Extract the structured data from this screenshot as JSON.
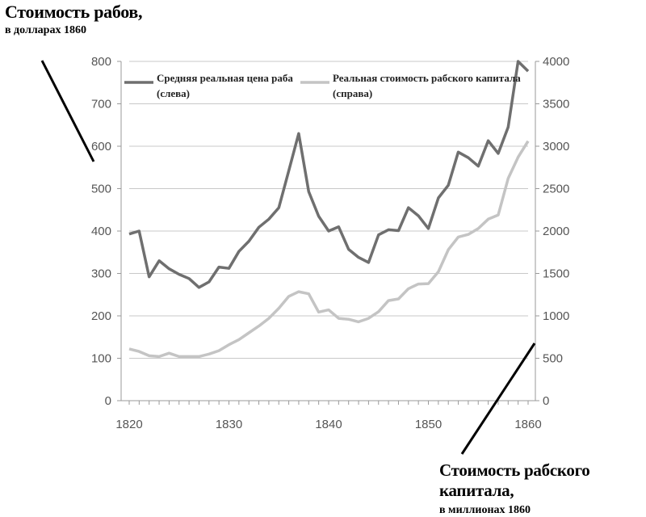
{
  "header": {
    "title": "Стоимость рабов,",
    "subtitle": "в долларах 1860"
  },
  "footer": {
    "title": "Стоимость рабского капитала,",
    "subtitle": "в миллионах 1860"
  },
  "legend": {
    "series1_line1": "Средняя реальная цена раба",
    "series1_line2": "(слева)",
    "series2_line1": "Реальная стоимость рабского капитала",
    "series2_line2": "(справа)"
  },
  "chart_data": {
    "type": "line",
    "xlim": [
      1820,
      1860
    ],
    "ylim_left": [
      0,
      800
    ],
    "ylim_right": [
      0,
      4000
    ],
    "x_ticks": [
      "1820",
      "1830",
      "1840",
      "1850",
      "1860"
    ],
    "y_ticks_left": [
      "0",
      "100",
      "200",
      "300",
      "400",
      "500",
      "600",
      "700",
      "800"
    ],
    "y_ticks_right": [
      "0",
      "500",
      "1000",
      "1500",
      "2000",
      "2500",
      "3000",
      "3500",
      "4000"
    ],
    "grid": true,
    "legend_position": "top",
    "x": [
      1820,
      1821,
      1822,
      1823,
      1824,
      1825,
      1826,
      1827,
      1828,
      1829,
      1830,
      1831,
      1832,
      1833,
      1834,
      1835,
      1836,
      1837,
      1838,
      1839,
      1840,
      1841,
      1842,
      1843,
      1844,
      1845,
      1846,
      1847,
      1848,
      1849,
      1850,
      1851,
      1852,
      1853,
      1854,
      1855,
      1856,
      1857,
      1858,
      1859,
      1860
    ],
    "series": [
      {
        "name": "Средняя реальная цена раба (слева)",
        "axis": "left",
        "color": "#6f6f6f",
        "values": [
          393,
          400,
          292,
          330,
          311,
          298,
          288,
          267,
          280,
          315,
          312,
          352,
          376,
          409,
          428,
          455,
          542,
          630,
          493,
          435,
          400,
          410,
          357,
          338,
          326,
          391,
          403,
          401,
          455,
          436,
          406,
          478,
          508,
          586,
          573,
          553,
          613,
          583,
          645,
          800,
          777
        ]
      },
      {
        "name": "Реальная стоимость рабского капитала (справа)",
        "axis": "right",
        "color": "#c4c4c4",
        "values": [
          610,
          580,
          530,
          520,
          560,
          520,
          520,
          520,
          550,
          590,
          660,
          720,
          800,
          880,
          970,
          1090,
          1230,
          1285,
          1260,
          1045,
          1070,
          970,
          960,
          930,
          970,
          1050,
          1180,
          1200,
          1320,
          1375,
          1380,
          1520,
          1780,
          1930,
          1960,
          2030,
          2140,
          2190,
          2620,
          2870,
          3060
        ]
      }
    ]
  }
}
